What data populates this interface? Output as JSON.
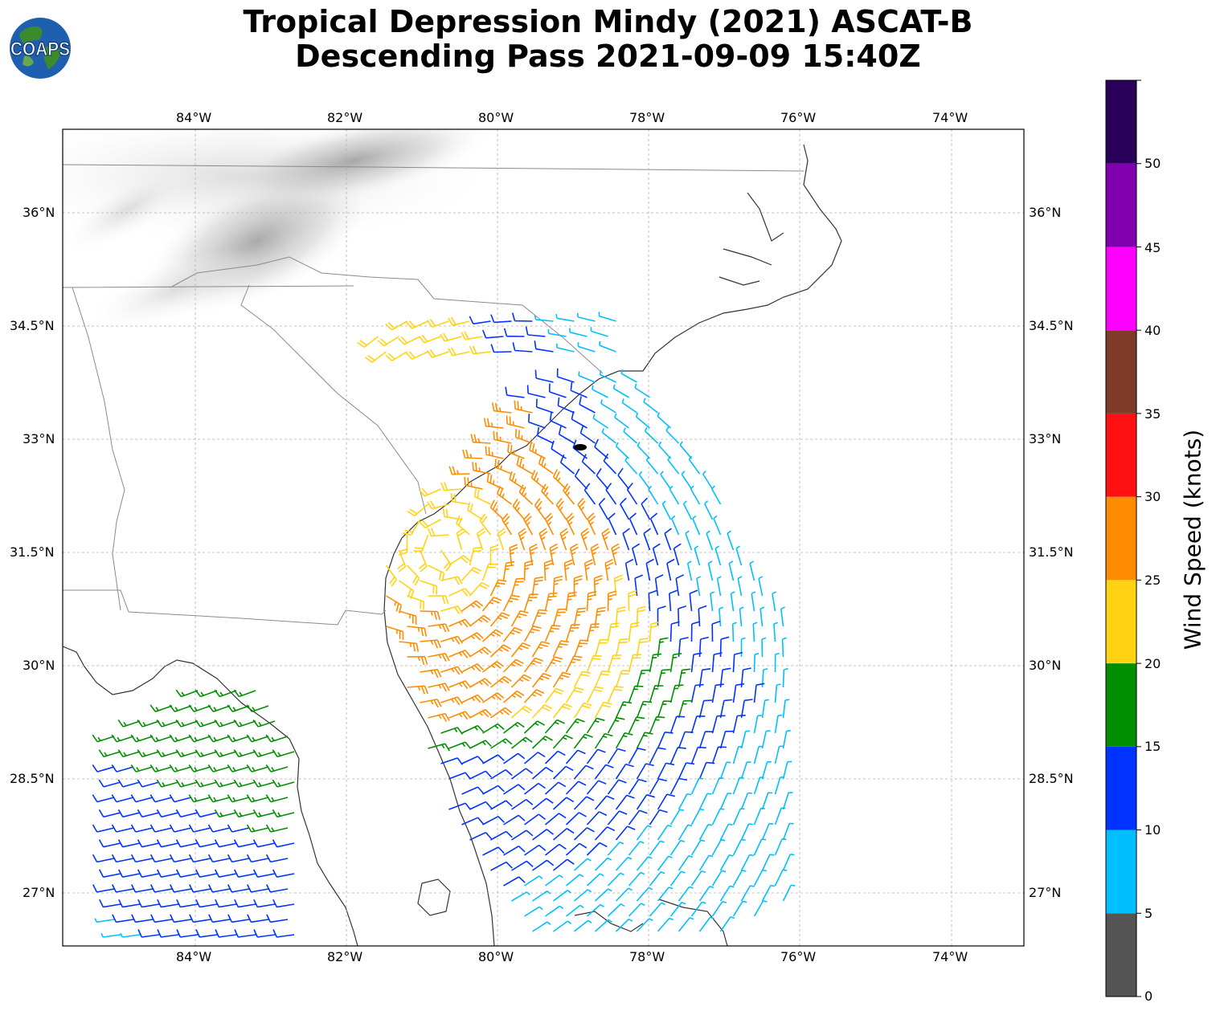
{
  "title": {
    "line1": "Tropical Depression Mindy (2021) ASCAT-B",
    "line2": "Descending Pass 2021-09-09 15:40Z"
  },
  "logo": {
    "text": "COAPS",
    "icon": "globe-logo-icon"
  },
  "map": {
    "lon_range": [
      -85.75,
      -73.05
    ],
    "lat_range": [
      26.25,
      37.05
    ],
    "lon_ticks": [
      "84°W",
      "82°W",
      "80°W",
      "78°W",
      "76°W",
      "74°W"
    ],
    "lat_ticks": [
      "36°N",
      "34.5°N",
      "33°N",
      "31.5°N",
      "30°N",
      "28.5°N",
      "27°N"
    ],
    "gridlines": true,
    "storm_center": {
      "lon": -78.9,
      "lat": 32.9,
      "icon": "storm-center-marker-icon"
    }
  },
  "colorbar": {
    "label": "Wind Speed (knots)",
    "ticks": [
      "0",
      "5",
      "10",
      "15",
      "20",
      "25",
      "30",
      "35",
      "40",
      "45",
      "50"
    ],
    "bins": [
      {
        "min": 0,
        "max": 5,
        "color": "#555555"
      },
      {
        "min": 5,
        "max": 10,
        "color": "#00bfff"
      },
      {
        "min": 10,
        "max": 15,
        "color": "#0033ff"
      },
      {
        "min": 15,
        "max": 20,
        "color": "#008f00"
      },
      {
        "min": 20,
        "max": 25,
        "color": "#ffd313"
      },
      {
        "min": 25,
        "max": 30,
        "color": "#ff8c00"
      },
      {
        "min": 30,
        "max": 35,
        "color": "#ff1111"
      },
      {
        "min": 35,
        "max": 40,
        "color": "#7f3a28"
      },
      {
        "min": 40,
        "max": 45,
        "color": "#ff00ff"
      },
      {
        "min": 45,
        "max": 50,
        "color": "#8000b0"
      },
      {
        "min": 50,
        "max": 55,
        "color": "#2a0058"
      }
    ]
  }
}
